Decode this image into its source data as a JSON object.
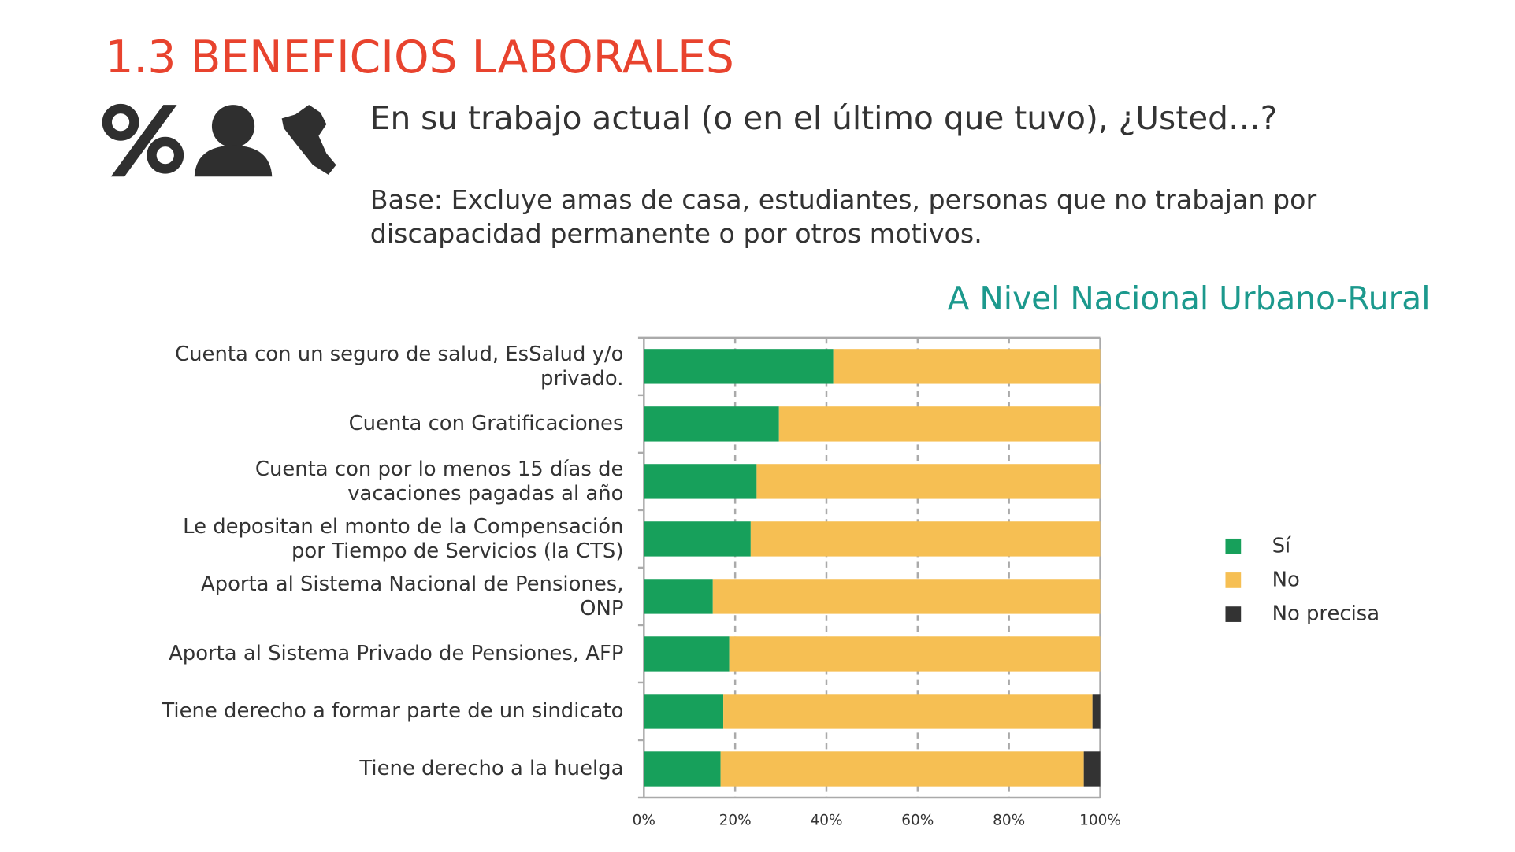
{
  "chart_data": {
    "type": "stacked-bar-horizontal",
    "title": "1.3 BENEFICIOS LABORALES",
    "question": "En su trabajo actual (o en el último que tuvo), ¿Usted…?",
    "base_note": "Base: Excluye amas de casa, estudiantes, personas que no trabajan por\ndiscapacidad permanente o por otros motivos.",
    "subtitle": "A Nivel Nacional Urbano-Rural",
    "categories": [
      "Cuenta con un seguro de salud, EsSalud y/o\nprivado.",
      "Cuenta con Gratificaciones",
      "Cuenta con por lo menos 15 días de\nvacaciones pagadas al año",
      "Le depositan el monto de la Compensación\npor Tiempo de Servicios (la CTS)",
      "Aporta al Sistema Nacional de Pensiones,\nONP",
      "Aporta al Sistema Privado de Pensiones, AFP",
      "Tiene derecho a formar parte de un sindicato",
      "Tiene derecho a la huelga"
    ],
    "series": [
      {
        "name": "Sí",
        "color": "#17a05b",
        "values": [
          41.5,
          29.6,
          24.7,
          23.4,
          15.1,
          18.7,
          17.4,
          16.8
        ]
      },
      {
        "name": "No",
        "color": "#f6bf53",
        "values": [
          58.5,
          70.4,
          75.3,
          76.6,
          84.9,
          81.3,
          80.9,
          79.6
        ]
      },
      {
        "name": "No precisa",
        "color": "#333333",
        "values": [
          0,
          0,
          0,
          0,
          0,
          0,
          1.7,
          3.6
        ]
      }
    ],
    "xlim": [
      0,
      100
    ],
    "xticks": [
      {
        "value": 0,
        "label": "0%"
      },
      {
        "value": 20,
        "label": "20%"
      },
      {
        "value": 40,
        "label": "40%"
      },
      {
        "value": 60,
        "label": "60%"
      },
      {
        "value": 80,
        "label": "80%"
      },
      {
        "value": 100,
        "label": "100%"
      }
    ],
    "grid": true,
    "legend": "right"
  }
}
